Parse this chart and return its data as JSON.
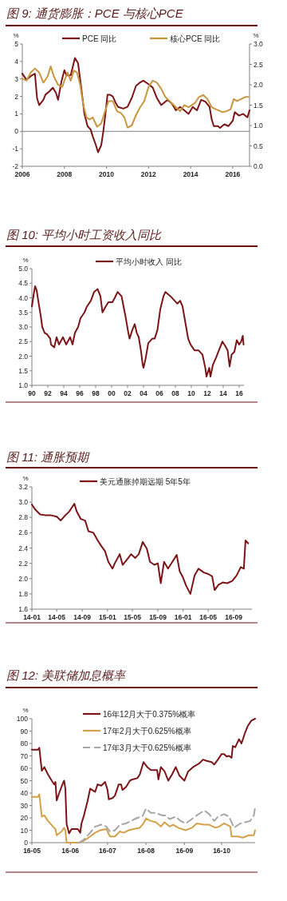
{
  "chart_data": [
    {
      "type": "line",
      "title": "图 9: 通货膨胀：PCE 与核心PCE",
      "ylabel": "%",
      "y2label": "%",
      "legend": "top",
      "xlim": [
        2006,
        2016.8
      ],
      "xticks": [
        2006,
        2008,
        2010,
        2012,
        2014,
        2016
      ],
      "ylim": [
        -2,
        5
      ],
      "yticks": [
        -2,
        -1,
        0,
        1,
        2,
        3,
        4,
        5
      ],
      "y2lim": [
        0,
        3
      ],
      "y2ticks": [
        {
          "value": 0,
          "label": "0.0"
        },
        {
          "value": 0.5,
          "label": "0.5"
        },
        {
          "value": 1,
          "label": "1.0"
        },
        {
          "value": 1.5,
          "label": "1.5"
        },
        {
          "value": 2,
          "label": "2.0"
        },
        {
          "value": 2.5,
          "label": "2.5"
        },
        {
          "value": 3,
          "label": "3.0"
        }
      ],
      "ref_lines": [
        {
          "axis": "y",
          "value": 0,
          "color": "#808080"
        }
      ],
      "series": [
        {
          "name": "PCE 同比",
          "color": "#7b1416",
          "x": [
            2006.0,
            2006.2,
            2006.45,
            2006.6,
            2006.7,
            2006.8,
            2007.0,
            2007.1,
            2007.3,
            2007.45,
            2007.6,
            2007.7,
            2007.85,
            2008.0,
            2008.1,
            2008.3,
            2008.5,
            2008.65,
            2008.8,
            2008.95,
            2009.1,
            2009.25,
            2009.35,
            2009.5,
            2009.6,
            2009.75,
            2009.85,
            2009.95,
            2010.05,
            2010.15,
            2010.3,
            2010.45,
            2010.55,
            2010.8,
            2011.0,
            2011.2,
            2011.4,
            2011.6,
            2011.75,
            2012.0,
            2012.2,
            2012.4,
            2012.6,
            2012.9,
            2013.1,
            2013.3,
            2013.5,
            2013.7,
            2013.9,
            2014.1,
            2014.3,
            2014.5,
            2014.7,
            2014.9,
            2015.0,
            2015.1,
            2015.3,
            2015.4,
            2015.6,
            2015.8,
            2016.0,
            2016.1,
            2016.3,
            2016.5,
            2016.7,
            2016.8
          ],
          "values": [
            3.3,
            2.95,
            3.2,
            3.3,
            1.9,
            1.5,
            1.8,
            2.1,
            2.3,
            2.5,
            2.2,
            1.8,
            2.8,
            3.5,
            3.2,
            3.2,
            4.2,
            3.9,
            2.5,
            1.0,
            0.3,
            0.1,
            -0.3,
            -0.8,
            -1.2,
            -0.8,
            0.0,
            1.0,
            2.1,
            2.1,
            2.0,
            1.6,
            1.4,
            1.3,
            1.4,
            1.9,
            2.6,
            2.8,
            2.9,
            2.7,
            2.5,
            1.9,
            1.5,
            1.8,
            1.6,
            1.2,
            1.4,
            1.2,
            1.0,
            1.4,
            1.2,
            1.8,
            1.7,
            1.4,
            0.7,
            0.3,
            0.3,
            0.2,
            0.4,
            0.3,
            0.6,
            1.1,
            0.9,
            1.0,
            0.8,
            1.2
          ]
        },
        {
          "name": "核心PCE 同比",
          "color": "#c8963e",
          "axis": "y2",
          "x": [
            2006.0,
            2006.2,
            2006.4,
            2006.6,
            2006.8,
            2007.0,
            2007.2,
            2007.35,
            2007.5,
            2007.7,
            2007.9,
            2008.0,
            2008.15,
            2008.3,
            2008.45,
            2008.6,
            2008.75,
            2008.9,
            2009.05,
            2009.2,
            2009.35,
            2009.55,
            2009.75,
            2009.9,
            2010.1,
            2010.3,
            2010.5,
            2010.7,
            2010.85,
            2011.0,
            2011.2,
            2011.4,
            2011.6,
            2011.8,
            2012.0,
            2012.2,
            2012.4,
            2012.6,
            2012.8,
            2013.0,
            2013.2,
            2013.5,
            2013.7,
            2013.9,
            2014.2,
            2014.4,
            2014.6,
            2014.8,
            2015.0,
            2015.2,
            2015.5,
            2015.7,
            2015.9,
            2016.05,
            2016.2,
            2016.4,
            2016.6,
            2016.75
          ],
          "values": [
            2.15,
            2.1,
            2.3,
            2.4,
            2.3,
            2.05,
            2.2,
            2.45,
            2.2,
            2.0,
            1.95,
            2.1,
            2.3,
            2.1,
            2.35,
            2.3,
            2.0,
            1.5,
            1.2,
            1.15,
            1.2,
            0.97,
            1.05,
            1.3,
            1.6,
            1.6,
            1.35,
            1.3,
            1.2,
            0.95,
            1.0,
            1.25,
            1.45,
            1.6,
            1.95,
            2.1,
            2.05,
            1.9,
            1.7,
            1.6,
            1.5,
            1.35,
            1.5,
            1.45,
            1.55,
            1.7,
            1.75,
            1.65,
            1.45,
            1.4,
            1.33,
            1.35,
            1.4,
            1.65,
            1.6,
            1.65,
            1.7,
            1.7
          ]
        }
      ]
    },
    {
      "type": "line",
      "title": "图 10: 平均小时工资收入同比",
      "ylabel": "%",
      "legend": "top",
      "xlim": [
        1990,
        2016.6
      ],
      "xticks": [
        {
          "value": 1990,
          "label": "90"
        },
        {
          "value": 1992,
          "label": "92"
        },
        {
          "value": 1994,
          "label": "94"
        },
        {
          "value": 1996,
          "label": "96"
        },
        {
          "value": 1998,
          "label": "98"
        },
        {
          "value": 2000,
          "label": "00"
        },
        {
          "value": 2002,
          "label": "02"
        },
        {
          "value": 2004,
          "label": "04"
        },
        {
          "value": 2006,
          "label": "06"
        },
        {
          "value": 2008,
          "label": "08"
        },
        {
          "value": 2010,
          "label": "10"
        },
        {
          "value": 2012,
          "label": "12"
        },
        {
          "value": 2014,
          "label": "14"
        },
        {
          "value": 2016,
          "label": "16"
        }
      ],
      "ylim": [
        1,
        5
      ],
      "yticks": [
        {
          "value": 1,
          "label": "1.0"
        },
        {
          "value": 1.5,
          "label": "1.5"
        },
        {
          "value": 2,
          "label": "2.0"
        },
        {
          "value": 2.5,
          "label": "2.5"
        },
        {
          "value": 3,
          "label": "3.0"
        },
        {
          "value": 3.5,
          "label": "3.5"
        },
        {
          "value": 4,
          "label": "4.0"
        },
        {
          "value": 4.5,
          "label": "4.5"
        },
        {
          "value": 5,
          "label": "5.0"
        }
      ],
      "x": [
        1990.0,
        1990.15,
        1990.4,
        1990.6,
        1990.8,
        1991.1,
        1991.3,
        1991.6,
        1991.9,
        1992.3,
        1992.4,
        1992.8,
        1993.1,
        1993.4,
        1993.9,
        1994.3,
        1994.8,
        1995.1,
        1995.4,
        1995.8,
        1996.1,
        1996.6,
        1996.9,
        1997.4,
        1997.8,
        1998.25,
        1998.6,
        1998.85,
        1999.25,
        1999.6,
        2000.1,
        2000.4,
        2000.75,
        2001.25,
        2001.5,
        2001.75,
        2002.1,
        2002.25,
        2002.6,
        2002.9,
        2003.15,
        2003.4,
        2003.7,
        2003.9,
        2004.0,
        2004.25,
        2004.6,
        2005.1,
        2005.4,
        2005.75,
        2006.1,
        2006.5,
        2006.75,
        2007.4,
        2007.9,
        2008.25,
        2008.6,
        2008.9,
        2009.25,
        2009.6,
        2009.9,
        2010.4,
        2010.9,
        2011.4,
        2011.75,
        2011.9,
        2012.25,
        2012.4,
        2012.7,
        2013.1,
        2013.6,
        2013.9,
        2014.25,
        2014.55,
        2014.8,
        2015.05,
        2015.4,
        2015.7,
        2016.0,
        2016.25,
        2016.45,
        2016.55
      ],
      "series": [
        {
          "name": "平均小时收入 同比",
          "color": "#7b1416",
          "values": [
            3.7,
            3.98,
            4.4,
            4.25,
            3.9,
            3.4,
            3.0,
            2.8,
            2.75,
            2.6,
            2.4,
            2.3,
            2.65,
            2.4,
            2.65,
            2.4,
            2.65,
            2.4,
            2.8,
            3.0,
            3.3,
            3.5,
            3.7,
            3.9,
            4.2,
            4.3,
            4.05,
            3.5,
            3.7,
            3.85,
            3.85,
            4.0,
            4.2,
            4.05,
            3.7,
            3.35,
            2.8,
            2.6,
            2.9,
            3.1,
            2.8,
            2.65,
            2.15,
            1.7,
            1.6,
            1.9,
            2.45,
            2.6,
            2.6,
            2.9,
            3.6,
            4.05,
            4.2,
            4.05,
            3.9,
            3.8,
            3.9,
            3.7,
            3.15,
            2.6,
            2.4,
            2.2,
            2.2,
            2.05,
            1.6,
            1.3,
            1.6,
            1.3,
            1.7,
            1.95,
            2.3,
            2.5,
            2.35,
            2.2,
            1.65,
            2.05,
            2.15,
            2.55,
            2.4,
            2.5,
            2.7,
            2.4
          ]
        }
      ]
    },
    {
      "type": "line",
      "title": "图 11: 通胀预期",
      "ylabel": "%",
      "legend": "top",
      "xlim": [
        "2014-01-01",
        "2016-11-28"
      ],
      "xticks": [
        {
          "value": "2014-01",
          "label": "14-01"
        },
        {
          "value": "2014-05",
          "label": "14-05"
        },
        {
          "value": "2014-09",
          "label": "14-09"
        },
        {
          "value": "2015-01",
          "label": "15-01"
        },
        {
          "value": "2015-05",
          "label": "15-05"
        },
        {
          "value": "2015-09",
          "label": "15-09"
        },
        {
          "value": "2016-01",
          "label": "16-01"
        },
        {
          "value": "2016-05",
          "label": "16-05"
        },
        {
          "value": "2016-09",
          "label": "16-09"
        }
      ],
      "ylim": [
        1.6,
        3.2
      ],
      "yticks": [
        {
          "value": 1.6,
          "label": "1.6"
        },
        {
          "value": 1.8,
          "label": "1.8"
        },
        {
          "value": 2,
          "label": "2.0"
        },
        {
          "value": 2.2,
          "label": "2.2"
        },
        {
          "value": 2.4,
          "label": "2.4"
        },
        {
          "value": 2.6,
          "label": "2.6"
        },
        {
          "value": 2.8,
          "label": "2.8"
        },
        {
          "value": 3,
          "label": "3.0"
        },
        {
          "value": 3.2,
          "label": "3.2"
        }
      ],
      "x": [
        "2014-01-01",
        "2014-01-15",
        "2014-02-10",
        "2014-03-05",
        "2014-04-01",
        "2014-05-01",
        "2014-05-20",
        "2014-06-05",
        "2014-07-01",
        "2014-07-25",
        "2014-08-05",
        "2014-08-25",
        "2014-09-15",
        "2014-10-01",
        "2014-10-25",
        "2014-11-15",
        "2014-12-01",
        "2014-12-20",
        "2015-01-05",
        "2015-01-25",
        "2015-02-05",
        "2015-03-01",
        "2015-03-15",
        "2015-04-05",
        "2015-04-25",
        "2015-05-15",
        "2015-06-01",
        "2015-06-20",
        "2015-07-10",
        "2015-07-25",
        "2015-08-15",
        "2015-09-01",
        "2015-09-15",
        "2015-10-01",
        "2015-10-20",
        "2015-11-10",
        "2015-12-01",
        "2015-12-15",
        "2016-01-01",
        "2016-01-15",
        "2016-02-05",
        "2016-02-25",
        "2016-03-15",
        "2016-04-10",
        "2016-05-01",
        "2016-05-20",
        "2016-06-01",
        "2016-06-20",
        "2016-07-10",
        "2016-08-01",
        "2016-08-25",
        "2016-09-15",
        "2016-10-05",
        "2016-10-20",
        "2016-10-28",
        "2016-11-10"
      ],
      "series": [
        {
          "name": "美元通胀掉期远期 5年5年",
          "color": "#7b1416",
          "values": [
            2.97,
            2.91,
            2.84,
            2.83,
            2.83,
            2.81,
            2.76,
            2.81,
            2.88,
            2.98,
            2.88,
            2.78,
            2.76,
            2.62,
            2.6,
            2.5,
            2.43,
            2.36,
            2.22,
            2.13,
            2.2,
            2.32,
            2.18,
            2.25,
            2.32,
            2.27,
            2.32,
            2.48,
            2.39,
            2.22,
            2.18,
            2.2,
            1.94,
            2.22,
            2.13,
            2.22,
            2.31,
            2.1,
            2.01,
            1.91,
            1.8,
            2.04,
            2.13,
            2.08,
            2.06,
            2.03,
            1.85,
            1.92,
            1.95,
            1.94,
            1.97,
            2.04,
            2.15,
            2.13,
            2.5,
            2.46
          ]
        }
      ]
    },
    {
      "type": "line",
      "title": "图 12: 美联储加息概率",
      "ylabel": "%",
      "legend": "top",
      "xlim": [
        "2016-05-01",
        "2016-10-28"
      ],
      "xticks": [
        {
          "value": "2016-05",
          "label": "16-05"
        },
        {
          "value": "2016-06",
          "label": "16-06"
        },
        {
          "value": "2016-07",
          "label": "16-07"
        },
        {
          "value": "2016-08",
          "label": "16-08"
        },
        {
          "value": "2016-09",
          "label": "16-09"
        },
        {
          "value": "2016-10",
          "label": "16-10"
        }
      ],
      "ylim": [
        0,
        100
      ],
      "yticks": [
        0,
        10,
        20,
        30,
        40,
        50,
        60,
        70,
        80,
        90,
        100
      ],
      "series": [
        {
          "name": "16年12月大于0.375%概率",
          "color": "#7b1416",
          "x": [
            "2016-05-01",
            "2016-05-06",
            "2016-05-07",
            "2016-05-09",
            "2016-05-11",
            "2016-05-14",
            "2016-05-17",
            "2016-05-19",
            "2016-05-20",
            "2016-05-21",
            "2016-05-23",
            "2016-05-26",
            "2016-05-27",
            "2016-05-28",
            "2016-05-29",
            "2016-05-31",
            "2016-06-02",
            "2016-06-05",
            "2016-06-07",
            "2016-06-09",
            "2016-06-10",
            "2016-06-12",
            "2016-06-15",
            "2016-06-17",
            "2016-06-21",
            "2016-06-23",
            "2016-06-26",
            "2016-06-29",
            "2016-07-01",
            "2016-07-02",
            "2016-07-05",
            "2016-07-07",
            "2016-07-10",
            "2016-07-12",
            "2016-07-13",
            "2016-07-16",
            "2016-07-19",
            "2016-07-21",
            "2016-07-25",
            "2016-07-27",
            "2016-07-30",
            "2016-08-02",
            "2016-08-05",
            "2016-08-10",
            "2016-08-11",
            "2016-08-13",
            "2016-08-16",
            "2016-08-19",
            "2016-08-22",
            "2016-08-25",
            "2016-08-28",
            "2016-09-01",
            "2016-09-04",
            "2016-09-08",
            "2016-09-13",
            "2016-09-16",
            "2016-09-19",
            "2016-09-23",
            "2016-09-25",
            "2016-09-28",
            "2016-10-01",
            "2016-10-03",
            "2016-10-05",
            "2016-10-07",
            "2016-10-09",
            "2016-10-10",
            "2016-10-12",
            "2016-10-15",
            "2016-10-17",
            "2016-10-20",
            "2016-10-22",
            "2016-10-25",
            "2016-10-28"
          ],
          "values": [
            75,
            75,
            76.5,
            58,
            61,
            55,
            50,
            47,
            49,
            34,
            40,
            48,
            50,
            43.5,
            15,
            7.5,
            11,
            11,
            11,
            8,
            15.5,
            22,
            34,
            43.5,
            41,
            47,
            46,
            49,
            42.5,
            35,
            36,
            38,
            47,
            47,
            42.5,
            45,
            50,
            51,
            52,
            55,
            65,
            61,
            58.5,
            58.5,
            51,
            61,
            57.5,
            50,
            55,
            61,
            54,
            50,
            57.5,
            61,
            64,
            67,
            66,
            65,
            63,
            67,
            71.5,
            71.5,
            69.5,
            70,
            68.5,
            78,
            77,
            83.5,
            80,
            89,
            94,
            98.5,
            100
          ]
        },
        {
          "name": "17年2月大于0.625%概率",
          "color": "#d4a04a",
          "x": [
            "2016-05-01",
            "2016-05-06",
            "2016-05-07",
            "2016-05-09",
            "2016-05-11",
            "2016-05-14",
            "2016-05-18",
            "2016-05-20",
            "2016-05-21",
            "2016-05-25",
            "2016-05-27",
            "2016-05-28",
            "2016-05-29",
            "2016-06-08",
            "2016-06-12",
            "2016-06-17",
            "2016-06-21",
            "2016-06-25",
            "2016-06-30",
            "2016-07-03",
            "2016-07-07",
            "2016-07-11",
            "2016-07-14",
            "2016-07-18",
            "2016-07-22",
            "2016-07-27",
            "2016-07-30",
            "2016-08-01",
            "2016-08-05",
            "2016-08-09",
            "2016-08-13",
            "2016-08-16",
            "2016-08-20",
            "2016-08-23",
            "2016-08-27",
            "2016-09-02",
            "2016-09-07",
            "2016-09-11",
            "2016-09-17",
            "2016-09-21",
            "2016-09-26",
            "2016-09-29",
            "2016-10-03",
            "2016-10-08",
            "2016-10-09",
            "2016-10-14",
            "2016-10-18",
            "2016-10-23",
            "2016-10-27",
            "2016-10-28"
          ],
          "values": [
            37,
            37,
            39,
            21,
            22,
            17.5,
            13,
            11,
            6,
            9,
            12,
            10,
            0,
            0,
            1.5,
            5,
            8,
            10,
            11,
            5,
            5,
            9,
            8,
            10,
            11,
            12,
            15.5,
            19.5,
            17.5,
            16.5,
            13,
            16.5,
            13,
            14.5,
            12,
            10,
            12,
            15.5,
            14.5,
            14.5,
            12,
            13,
            15.5,
            13,
            5,
            5,
            4,
            6,
            6,
            10
          ]
        },
        {
          "name": "17年3月大于0.625%概率",
          "color": "#a6a6a6",
          "line_style": "dashed",
          "x": [
            "2016-06-08",
            "2016-06-12",
            "2016-06-17",
            "2016-06-21",
            "2016-06-26",
            "2016-06-30",
            "2016-07-03",
            "2016-07-07",
            "2016-07-11",
            "2016-07-16",
            "2016-07-20",
            "2016-07-25",
            "2016-07-29",
            "2016-08-01",
            "2016-08-05",
            "2016-08-09",
            "2016-08-14",
            "2016-08-17",
            "2016-08-20",
            "2016-08-25",
            "2016-08-29",
            "2016-09-02",
            "2016-09-07",
            "2016-09-11",
            "2016-09-17",
            "2016-09-21",
            "2016-09-25",
            "2016-09-28",
            "2016-10-03",
            "2016-10-07",
            "2016-10-11",
            "2016-10-16",
            "2016-10-20",
            "2016-10-24",
            "2016-10-27",
            "2016-10-28"
          ],
          "values": [
            0,
            2.5,
            8,
            13,
            14.5,
            13,
            9,
            10,
            14.5,
            15.5,
            17.5,
            20,
            21,
            27.5,
            24,
            24,
            22,
            22,
            19,
            21,
            17.5,
            15.5,
            19,
            22,
            26,
            23,
            17.5,
            21,
            23,
            21,
            12,
            15.5,
            16.5,
            17.5,
            22,
            28.5
          ]
        }
      ]
    }
  ]
}
